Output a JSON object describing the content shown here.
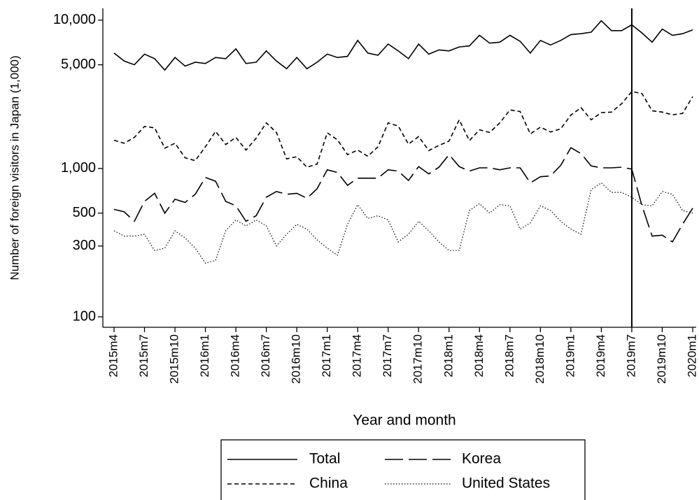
{
  "chart_data": {
    "type": "line",
    "ylabel": "Number of foreign visitors in Japan (1,000)",
    "xlabel": "Year and month",
    "log_scale_y": true,
    "ylim": [
      85,
      12000
    ],
    "yticks": [
      100,
      300,
      500,
      {
        "value": 1000,
        "label": "1,000"
      },
      {
        "value": 5000,
        "label": "5,000"
      },
      {
        "value": 10000,
        "label": "10,000"
      }
    ],
    "reference_line_x": "2019m7",
    "categories": [
      "2015m4",
      null,
      null,
      "2015m7",
      null,
      null,
      "2015m10",
      null,
      null,
      "2016m1",
      null,
      null,
      "2016m4",
      null,
      null,
      "2016m7",
      null,
      null,
      "2016m10",
      null,
      null,
      "2017m1",
      null,
      null,
      "2017m4",
      null,
      null,
      "2017m7",
      null,
      null,
      "2017m10",
      null,
      null,
      "2018m1",
      null,
      null,
      "2018m4",
      null,
      null,
      "2018m7",
      null,
      null,
      "2018m10",
      null,
      null,
      "2019m1",
      null,
      null,
      "2019m4",
      null,
      null,
      "2019m7",
      null,
      null,
      "2019m10",
      null,
      null,
      "2020m1"
    ],
    "series": [
      {
        "name": "Total",
        "color": "#000000",
        "dash": "solid",
        "values": [
          6000,
          5300,
          5000,
          5900,
          5500,
          4600,
          5600,
          4900,
          5200,
          5100,
          5600,
          5500,
          6400,
          5100,
          5200,
          6200,
          5300,
          4700,
          5600,
          4700,
          5200,
          5900,
          5600,
          5700,
          7300,
          6000,
          5800,
          6900,
          6200,
          5500,
          6900,
          5900,
          6300,
          6200,
          6600,
          6700,
          7900,
          7000,
          7100,
          7900,
          7200,
          6000,
          7300,
          6800,
          7300,
          8000,
          8100,
          8300,
          9900,
          8500,
          8500,
          9300,
          8200,
          7100,
          8700,
          7900,
          8100,
          8600
        ]
      },
      {
        "name": "Korea",
        "color": "#000000",
        "dash": "long-dash",
        "values": [
          530,
          510,
          440,
          600,
          680,
          500,
          620,
          590,
          670,
          870,
          820,
          600,
          560,
          440,
          480,
          640,
          700,
          670,
          680,
          630,
          730,
          980,
          940,
          770,
          860,
          860,
          860,
          980,
          960,
          830,
          1030,
          920,
          1020,
          1240,
          1030,
          960,
          1010,
          1010,
          980,
          1010,
          1010,
          800,
          880,
          890,
          1050,
          1380,
          1260,
          1040,
          1010,
          1010,
          1020,
          990,
          560,
          350,
          355,
          320,
          420,
          540
        ]
      },
      {
        "name": "China",
        "color": "#000000",
        "dash": "short-dash",
        "values": [
          1550,
          1480,
          1620,
          1920,
          1880,
          1370,
          1480,
          1180,
          1130,
          1400,
          1780,
          1450,
          1620,
          1330,
          1600,
          2030,
          1750,
          1160,
          1200,
          1020,
          1070,
          1740,
          1560,
          1240,
          1330,
          1210,
          1400,
          2030,
          1930,
          1460,
          1640,
          1320,
          1430,
          1530,
          2130,
          1540,
          1820,
          1750,
          2030,
          2480,
          2420,
          1710,
          1900,
          1760,
          1850,
          2290,
          2570,
          2130,
          2380,
          2400,
          2730,
          3300,
          3200,
          2450,
          2400,
          2300,
          2350,
          3050
        ]
      },
      {
        "name": "United States",
        "color": "#000000",
        "dash": "dotted",
        "values": [
          380,
          350,
          350,
          360,
          280,
          290,
          380,
          340,
          290,
          230,
          240,
          380,
          450,
          410,
          450,
          410,
          300,
          360,
          420,
          390,
          330,
          290,
          260,
          420,
          570,
          460,
          480,
          450,
          320,
          360,
          440,
          380,
          320,
          280,
          280,
          520,
          580,
          500,
          570,
          560,
          390,
          430,
          560,
          520,
          440,
          390,
          360,
          720,
          800,
          690,
          690,
          640,
          570,
          560,
          700,
          670,
          520,
          500
        ]
      }
    ]
  }
}
